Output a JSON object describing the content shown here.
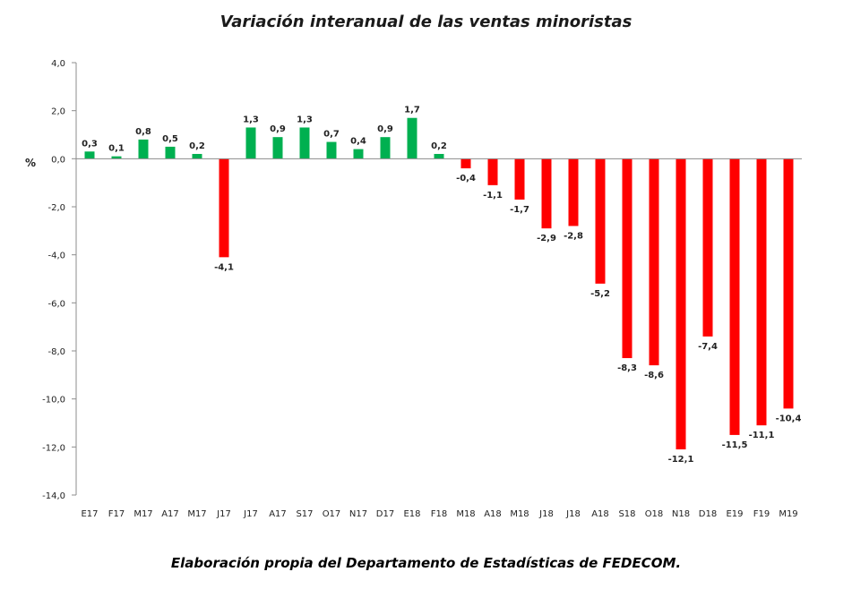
{
  "chart_data": {
    "type": "bar",
    "title": "Variación interanual de las ventas minoristas",
    "caption": "Elaboración propia del Departamento de Estadísticas de FEDECOM.",
    "ylabel": "%",
    "xlabel": "",
    "ylim": [
      -14,
      4
    ],
    "yticks": [
      4,
      2,
      0,
      -2,
      -4,
      -6,
      -8,
      -10,
      -12,
      -14
    ],
    "ytick_labels": [
      "4,0",
      "2,0",
      "0,0",
      "-2,0",
      "-4,0",
      "-6,0",
      "-8,0",
      "-10,0",
      "-12,0",
      "-14,0"
    ],
    "grid": false,
    "categories": [
      "E17",
      "F17",
      "M17",
      "A17",
      "M17",
      "J17",
      "J17",
      "A17",
      "S17",
      "O17",
      "N17",
      "D17",
      "E18",
      "F18",
      "M18",
      "A18",
      "M18",
      "J18",
      "J18",
      "A18",
      "S18",
      "O18",
      "N18",
      "D18",
      "E19",
      "F19",
      "M19"
    ],
    "values": [
      0.3,
      0.1,
      0.8,
      0.5,
      0.2,
      -4.1,
      1.3,
      0.9,
      1.3,
      0.7,
      0.4,
      0.9,
      1.7,
      0.2,
      -0.4,
      -1.1,
      -1.7,
      -2.9,
      -2.8,
      -5.2,
      -8.3,
      -8.6,
      -12.1,
      -7.4,
      -11.5,
      -11.1,
      -10.4
    ],
    "value_labels": [
      "0,3",
      "0,1",
      "0,8",
      "0,5",
      "0,2",
      "-4,1",
      "1,3",
      "0,9",
      "1,3",
      "0,7",
      "0,4",
      "0,9",
      "1,7",
      "0,2",
      "-0,4",
      "-1,1",
      "-1,7",
      "-2,9",
      "-2,8",
      "-5,2",
      "-8,3",
      "-8,6",
      "-12,1",
      "-7,4",
      "-11,5",
      "-11,1",
      "-10,4"
    ],
    "colors": {
      "positive": "#00b050",
      "negative": "#ff0000",
      "axis": "#8c8c8c"
    }
  }
}
